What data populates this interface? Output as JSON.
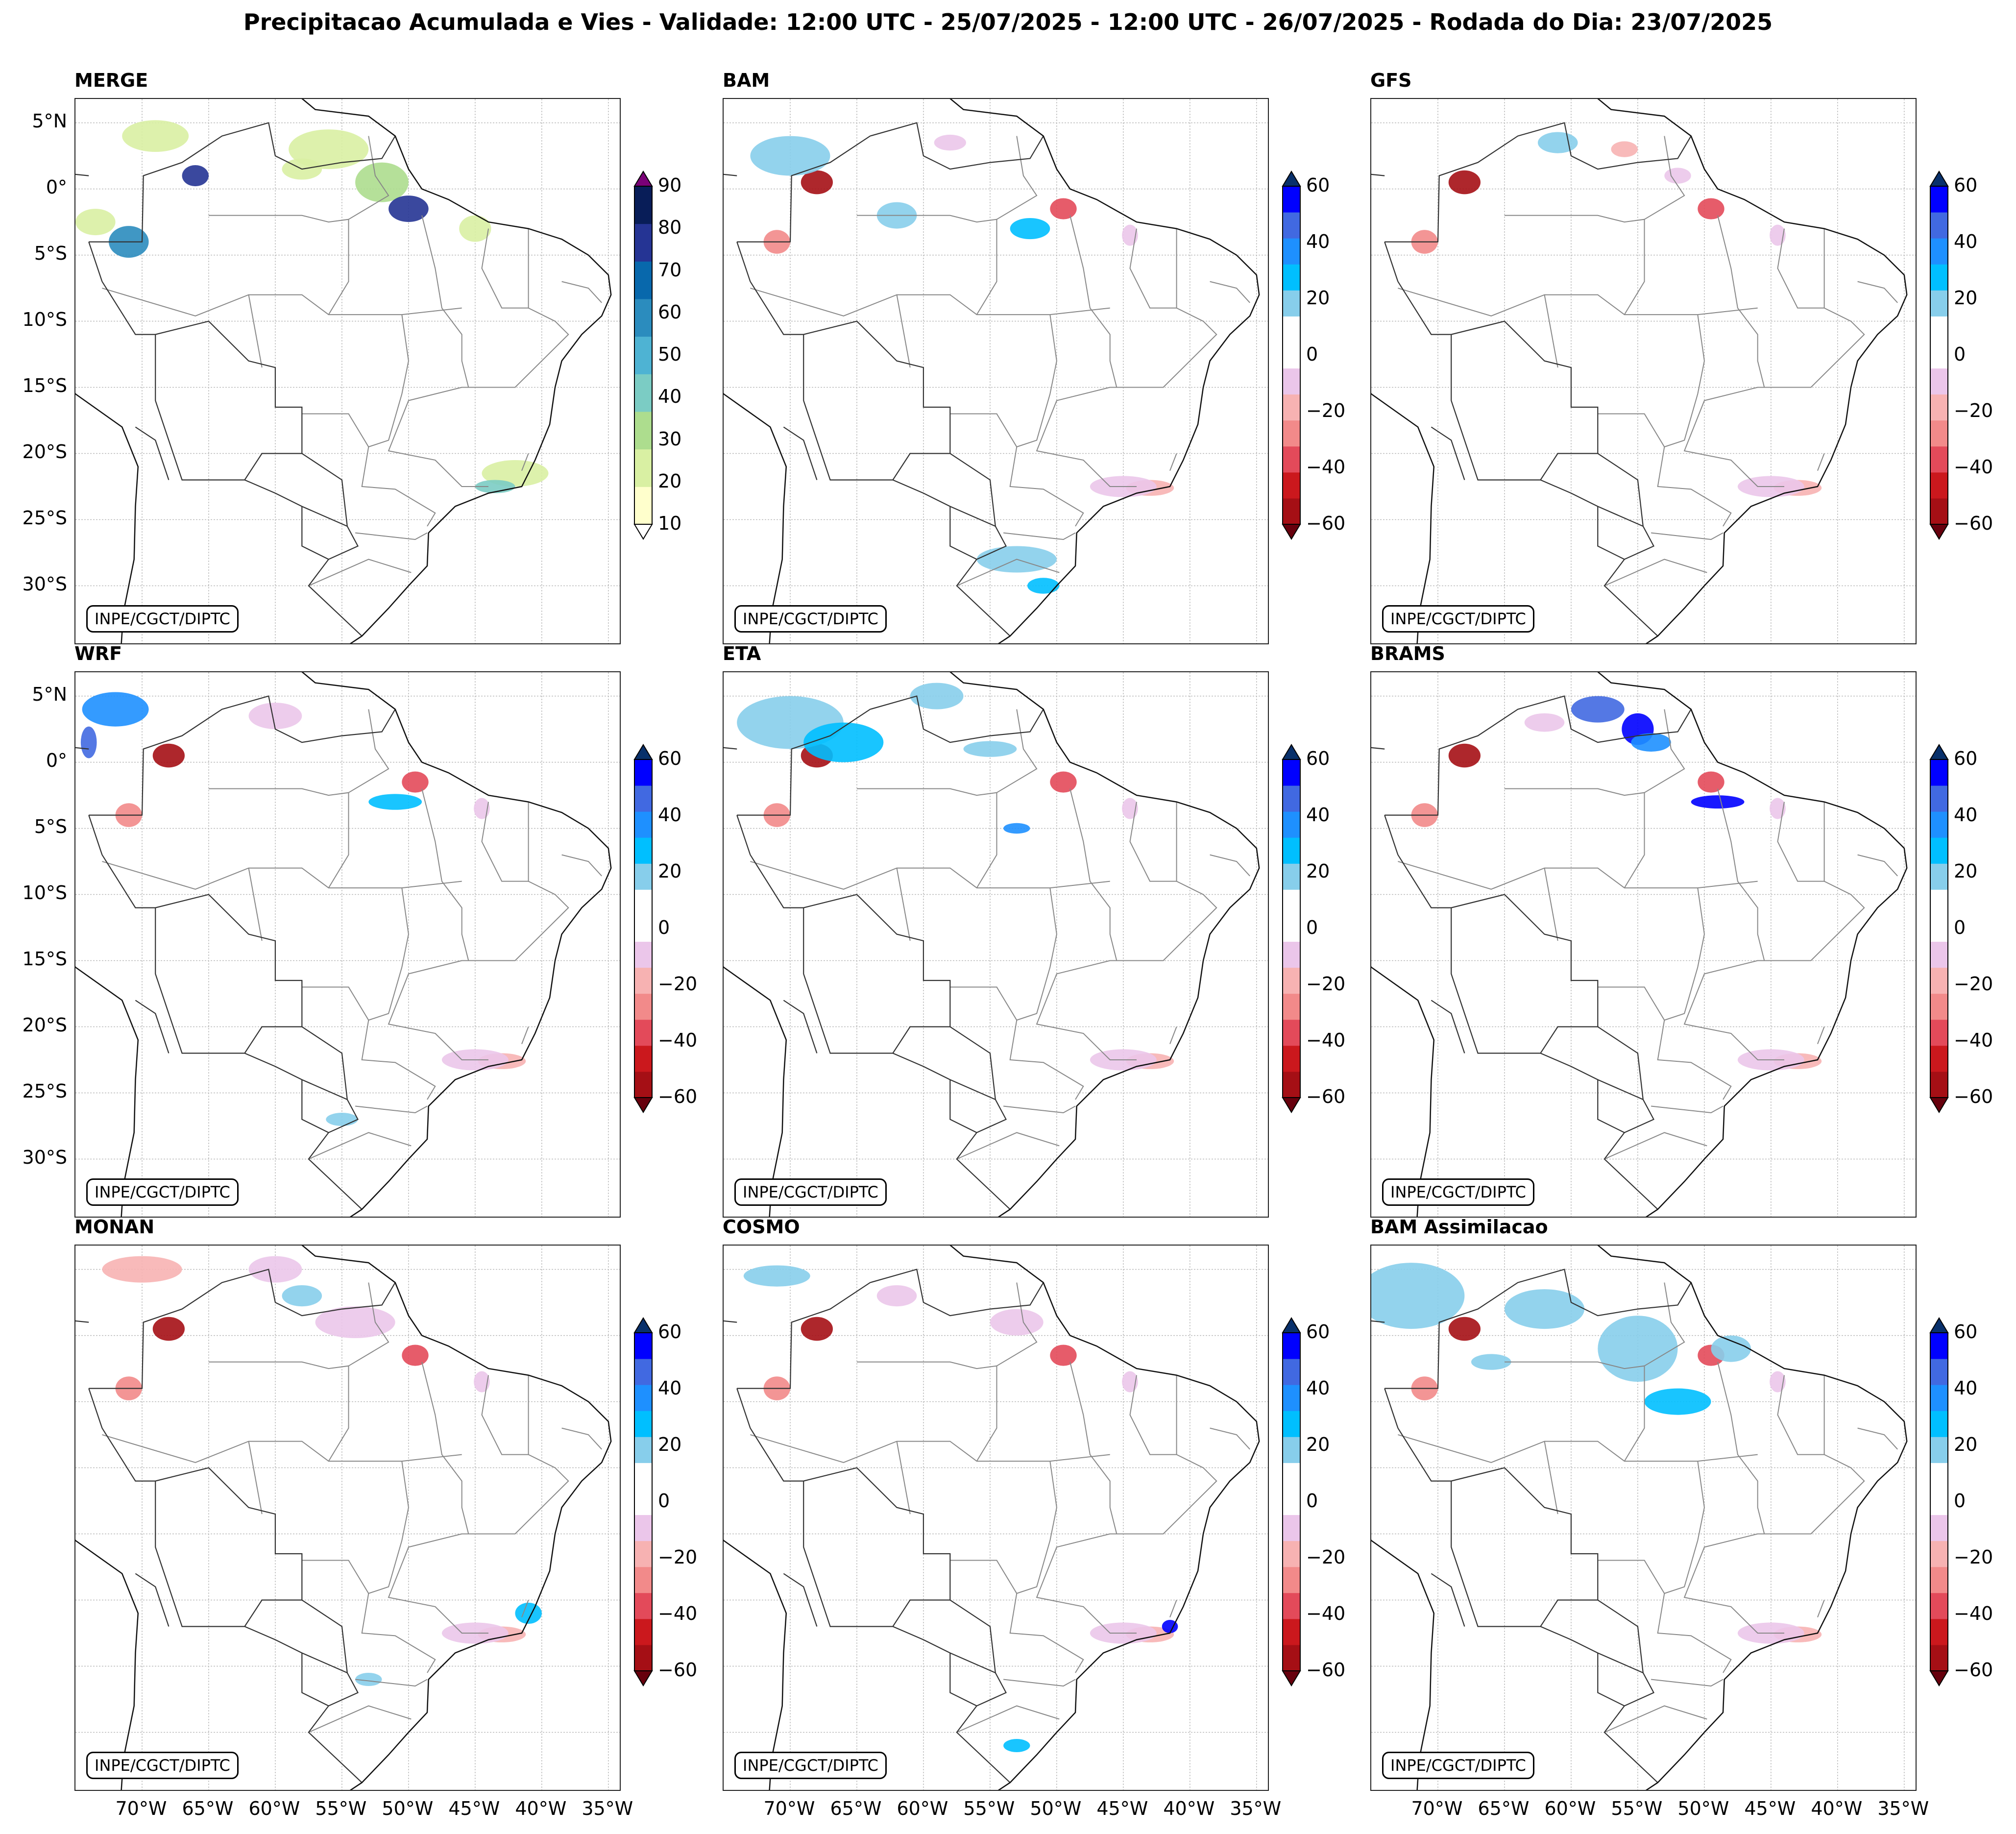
{
  "title": "Precipitacao Acumulada e Vies - Validade: 12:00 UTC - 25/07/2025 - 12:00 UTC - 26/07/2025 - Rodada do Dia: 23/07/2025",
  "credit": "INPE/CGCT/DIPTC",
  "panels": [
    {
      "name": "MERGE"
    },
    {
      "name": "BAM"
    },
    {
      "name": "GFS"
    },
    {
      "name": "WRF"
    },
    {
      "name": "ETA"
    },
    {
      "name": "BRAMS"
    },
    {
      "name": "MONAN"
    },
    {
      "name": "COSMO"
    },
    {
      "name": "BAM Assimilacao"
    }
  ],
  "lat_labels": [
    "5°N",
    "0°",
    "5°S",
    "10°S",
    "15°S",
    "20°S",
    "25°S",
    "30°S"
  ],
  "lon_labels": [
    "70°W",
    "65°W",
    "60°W",
    "55°W",
    "50°W",
    "45°W",
    "40°W",
    "35°W"
  ],
  "merge_colorbar": {
    "ticks": [
      "90",
      "80",
      "70",
      "60",
      "50",
      "40",
      "30",
      "20",
      "10"
    ],
    "colors": [
      "#ffffcc",
      "#d9f0a3",
      "#addd8e",
      "#7bccc4",
      "#4eb3d3",
      "#2b8cbe",
      "#0868ac",
      "#253494",
      "#081d58"
    ],
    "over_color": "#7a0177",
    "under_color": "#ffffff"
  },
  "bias_colorbar": {
    "ticks": [
      "60",
      "40",
      "20",
      "0",
      "−20",
      "−40",
      "−60"
    ],
    "colors": [
      "#a50f15",
      "#cb181d",
      "#e34a5a",
      "#f28a8a",
      "#f7b2b2",
      "#ebc6ea",
      "#ffffff",
      "#ffffff",
      "#87ceeb",
      "#00bfff",
      "#1e90ff",
      "#4169e1",
      "#0000ff"
    ],
    "over_color": "#08306b",
    "under_color": "#67000d"
  }
}
